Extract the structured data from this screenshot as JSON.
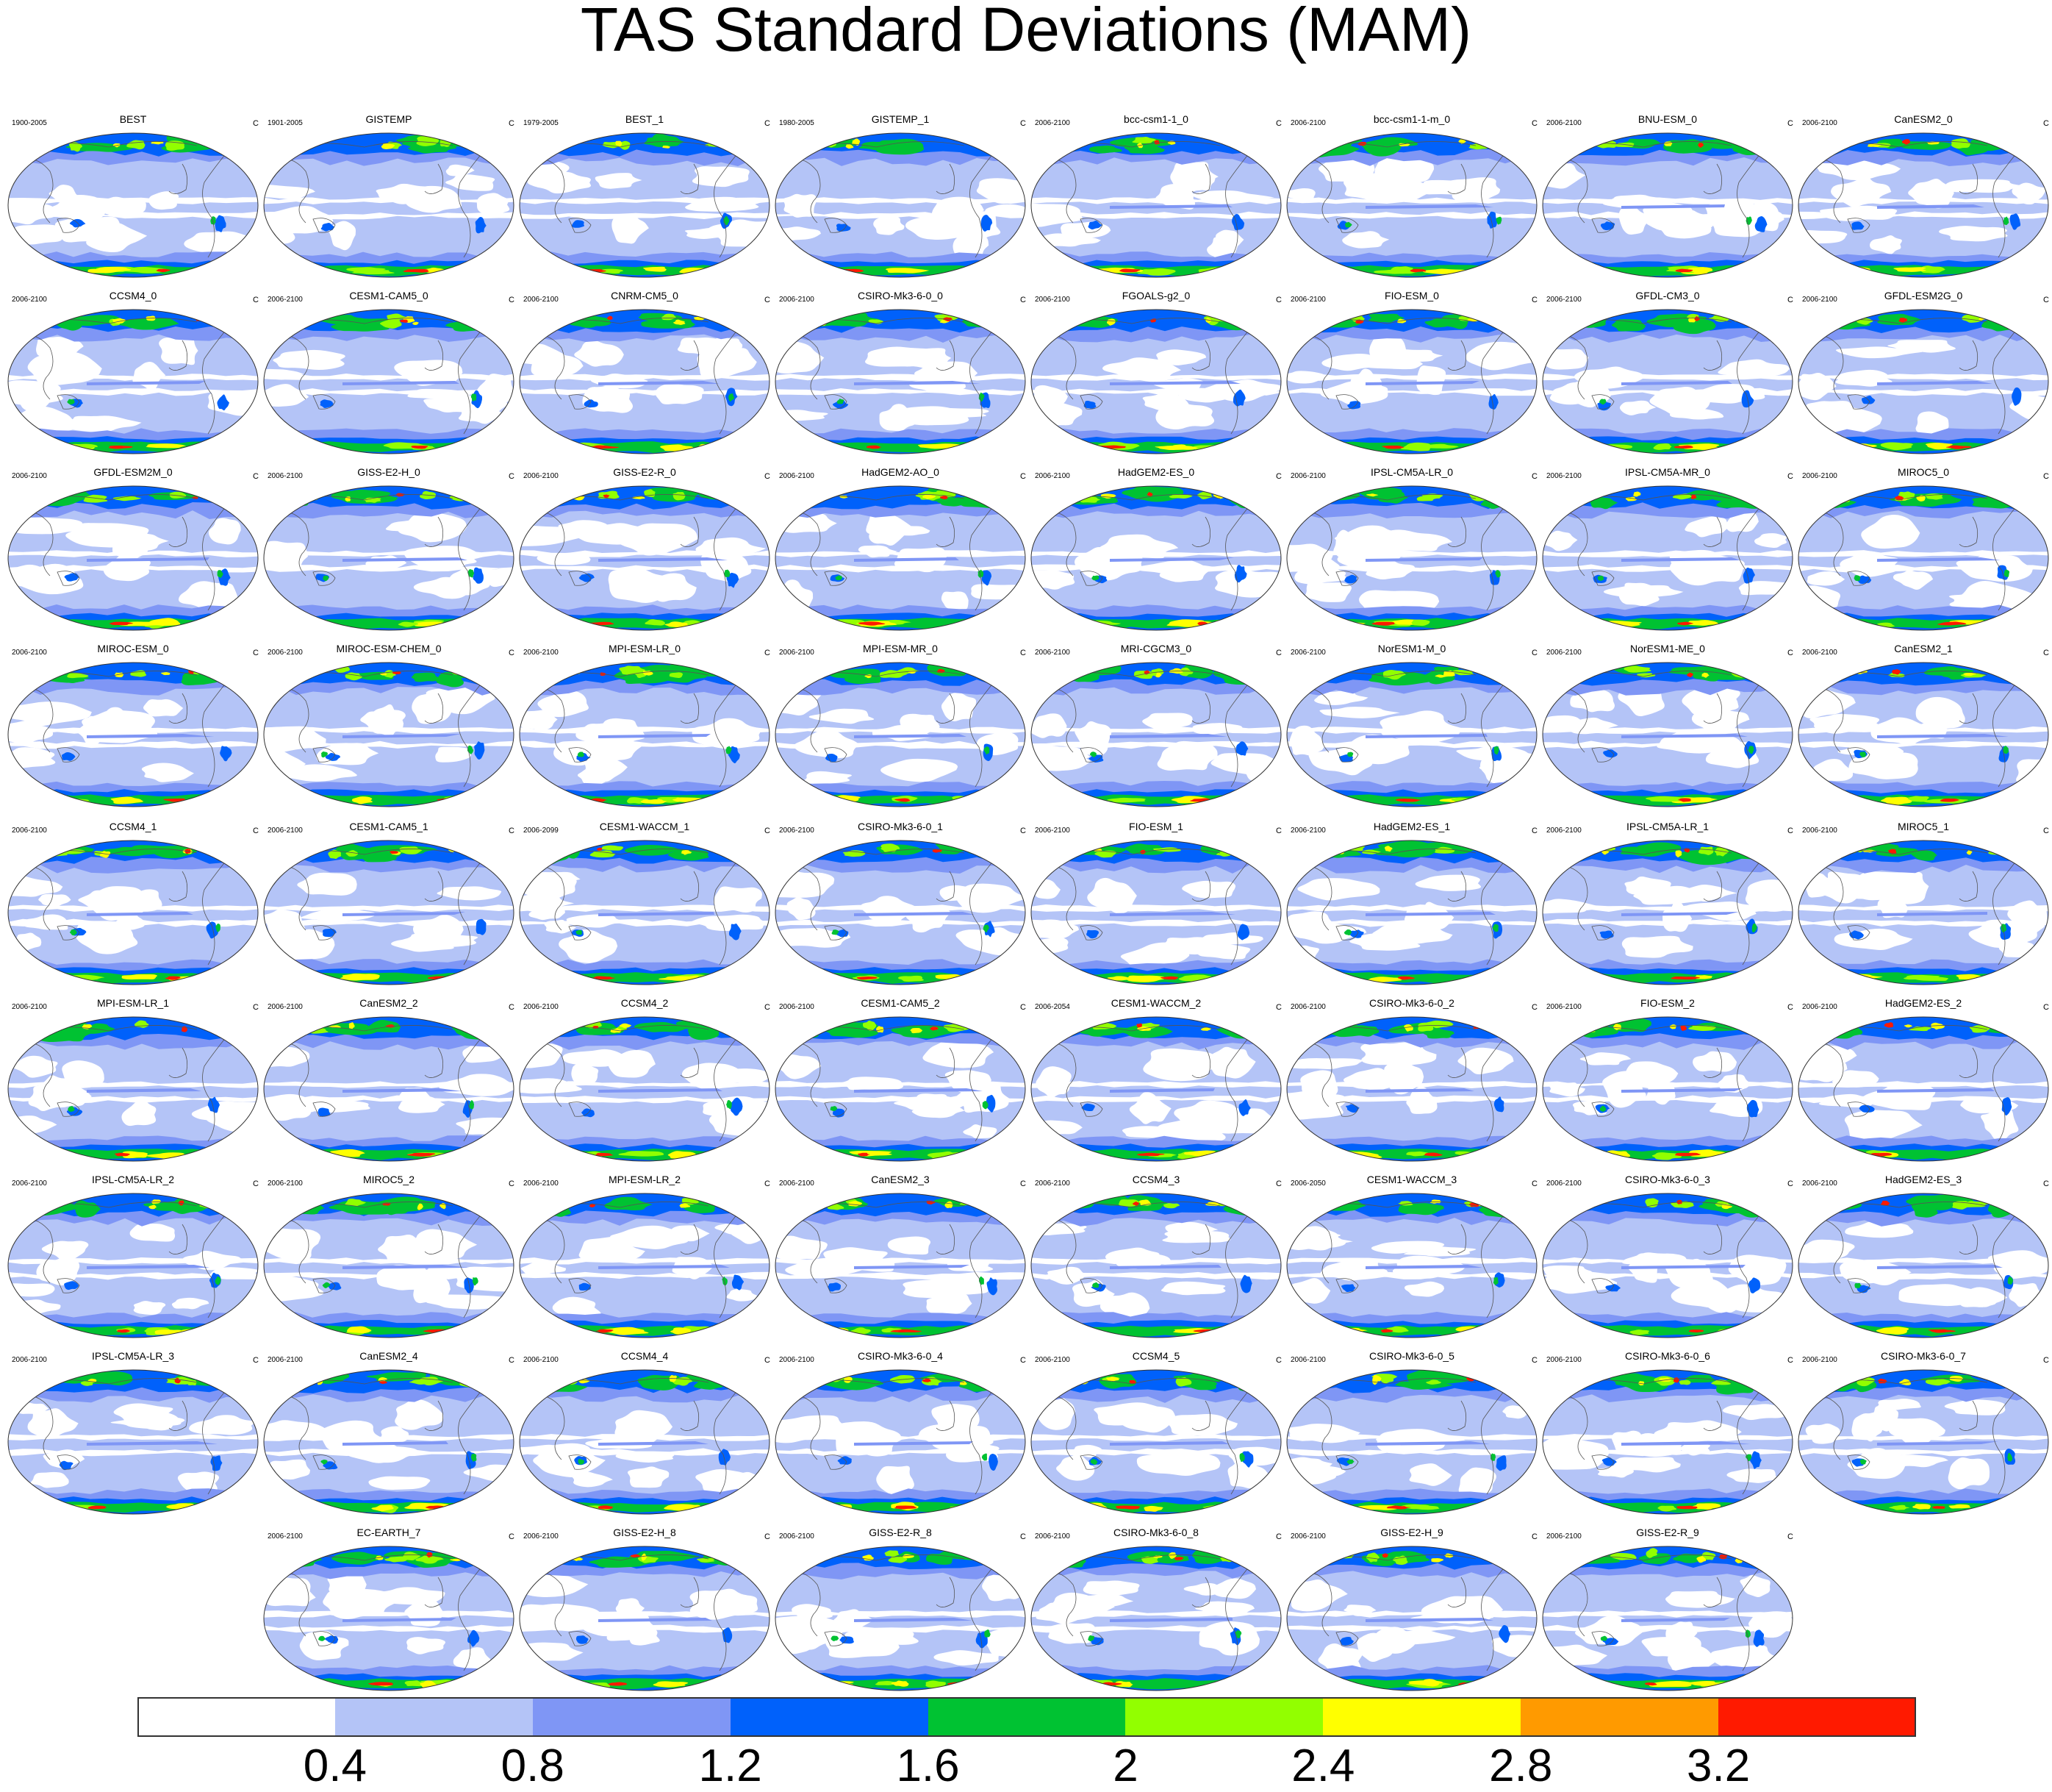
{
  "title": "TAS Standard Deviations (MAM)",
  "units": "C",
  "chart_data": {
    "type": "heatmap",
    "projection": "Robinson",
    "variable": "TAS standard deviation",
    "season": "MAM",
    "units": "C",
    "levels": [
      0.4,
      0.8,
      1.2,
      1.6,
      2,
      2.4,
      2.8,
      3.2
    ],
    "level_labels": [
      "0.4",
      "0.8",
      "1.2",
      "1.6",
      "2",
      "2.4",
      "2.8",
      "3.2"
    ],
    "colors": [
      "#ffffff",
      "#b4c4f7",
      "#7f96f5",
      "#0061fb",
      "#00c232",
      "#92ff00",
      "#ffff00",
      "#ff9a00",
      "#ff1a00"
    ],
    "panels": [
      {
        "name": "BEST",
        "period": "1900-2005"
      },
      {
        "name": "GISTEMP",
        "period": "1901-2005"
      },
      {
        "name": "BEST_1",
        "period": "1979-2005"
      },
      {
        "name": "GISTEMP_1",
        "period": "1980-2005"
      },
      {
        "name": "bcc-csm1-1_0",
        "period": "2006-2100"
      },
      {
        "name": "bcc-csm1-1-m_0",
        "period": "2006-2100"
      },
      {
        "name": "BNU-ESM_0",
        "period": "2006-2100"
      },
      {
        "name": "CanESM2_0",
        "period": "2006-2100"
      },
      {
        "name": "CCSM4_0",
        "period": "2006-2100"
      },
      {
        "name": "CESM1-CAM5_0",
        "period": "2006-2100"
      },
      {
        "name": "CNRM-CM5_0",
        "period": "2006-2100"
      },
      {
        "name": "CSIRO-Mk3-6-0_0",
        "period": "2006-2100"
      },
      {
        "name": "FGOALS-g2_0",
        "period": "2006-2100"
      },
      {
        "name": "FIO-ESM_0",
        "period": "2006-2100"
      },
      {
        "name": "GFDL-CM3_0",
        "period": "2006-2100"
      },
      {
        "name": "GFDL-ESM2G_0",
        "period": "2006-2100"
      },
      {
        "name": "GFDL-ESM2M_0",
        "period": "2006-2100"
      },
      {
        "name": "GISS-E2-H_0",
        "period": "2006-2100"
      },
      {
        "name": "GISS-E2-R_0",
        "period": "2006-2100"
      },
      {
        "name": "HadGEM2-AO_0",
        "period": "2006-2100"
      },
      {
        "name": "HadGEM2-ES_0",
        "period": "2006-2100"
      },
      {
        "name": "IPSL-CM5A-LR_0",
        "period": "2006-2100"
      },
      {
        "name": "IPSL-CM5A-MR_0",
        "period": "2006-2100"
      },
      {
        "name": "MIROC5_0",
        "period": "2006-2100"
      },
      {
        "name": "MIROC-ESM_0",
        "period": "2006-2100"
      },
      {
        "name": "MIROC-ESM-CHEM_0",
        "period": "2006-2100"
      },
      {
        "name": "MPI-ESM-LR_0",
        "period": "2006-2100"
      },
      {
        "name": "MPI-ESM-MR_0",
        "period": "2006-2100"
      },
      {
        "name": "MRI-CGCM3_0",
        "period": "2006-2100"
      },
      {
        "name": "NorESM1-M_0",
        "period": "2006-2100"
      },
      {
        "name": "NorESM1-ME_0",
        "period": "2006-2100"
      },
      {
        "name": "CanESM2_1",
        "period": "2006-2100"
      },
      {
        "name": "CCSM4_1",
        "period": "2006-2100"
      },
      {
        "name": "CESM1-CAM5_1",
        "period": "2006-2100"
      },
      {
        "name": "CESM1-WACCM_1",
        "period": "2006-2099"
      },
      {
        "name": "CSIRO-Mk3-6-0_1",
        "period": "2006-2100"
      },
      {
        "name": "FIO-ESM_1",
        "period": "2006-2100"
      },
      {
        "name": "HadGEM2-ES_1",
        "period": "2006-2100"
      },
      {
        "name": "IPSL-CM5A-LR_1",
        "period": "2006-2100"
      },
      {
        "name": "MIROC5_1",
        "period": "2006-2100"
      },
      {
        "name": "MPI-ESM-LR_1",
        "period": "2006-2100"
      },
      {
        "name": "CanESM2_2",
        "period": "2006-2100"
      },
      {
        "name": "CCSM4_2",
        "period": "2006-2100"
      },
      {
        "name": "CESM1-CAM5_2",
        "period": "2006-2100"
      },
      {
        "name": "CESM1-WACCM_2",
        "period": "2006-2054"
      },
      {
        "name": "CSIRO-Mk3-6-0_2",
        "period": "2006-2100"
      },
      {
        "name": "FIO-ESM_2",
        "period": "2006-2100"
      },
      {
        "name": "HadGEM2-ES_2",
        "period": "2006-2100"
      },
      {
        "name": "IPSL-CM5A-LR_2",
        "period": "2006-2100"
      },
      {
        "name": "MIROC5_2",
        "period": "2006-2100"
      },
      {
        "name": "MPI-ESM-LR_2",
        "period": "2006-2100"
      },
      {
        "name": "CanESM2_3",
        "period": "2006-2100"
      },
      {
        "name": "CCSM4_3",
        "period": "2006-2100"
      },
      {
        "name": "CESM1-WACCM_3",
        "period": "2006-2050"
      },
      {
        "name": "CSIRO-Mk3-6-0_3",
        "period": "2006-2100"
      },
      {
        "name": "HadGEM2-ES_3",
        "period": "2006-2100"
      },
      {
        "name": "IPSL-CM5A-LR_3",
        "period": "2006-2100"
      },
      {
        "name": "CanESM2_4",
        "period": "2006-2100"
      },
      {
        "name": "CCSM4_4",
        "period": "2006-2100"
      },
      {
        "name": "CSIRO-Mk3-6-0_4",
        "period": "2006-2100"
      },
      {
        "name": "CCSM4_5",
        "period": "2006-2100"
      },
      {
        "name": "CSIRO-Mk3-6-0_5",
        "period": "2006-2100"
      },
      {
        "name": "CSIRO-Mk3-6-0_6",
        "period": "2006-2100"
      },
      {
        "name": "CSIRO-Mk3-6-0_7",
        "period": "2006-2100"
      },
      {
        "name": "EC-EARTH_7",
        "period": "2006-2100"
      },
      {
        "name": "GISS-E2-H_8",
        "period": "2006-2100"
      },
      {
        "name": "GISS-E2-R_8",
        "period": "2006-2100"
      },
      {
        "name": "CSIRO-Mk3-6-0_8",
        "period": "2006-2100"
      },
      {
        "name": "GISS-E2-H_9",
        "period": "2006-2100"
      },
      {
        "name": "GISS-E2-R_9",
        "period": "2006-2100"
      }
    ]
  }
}
